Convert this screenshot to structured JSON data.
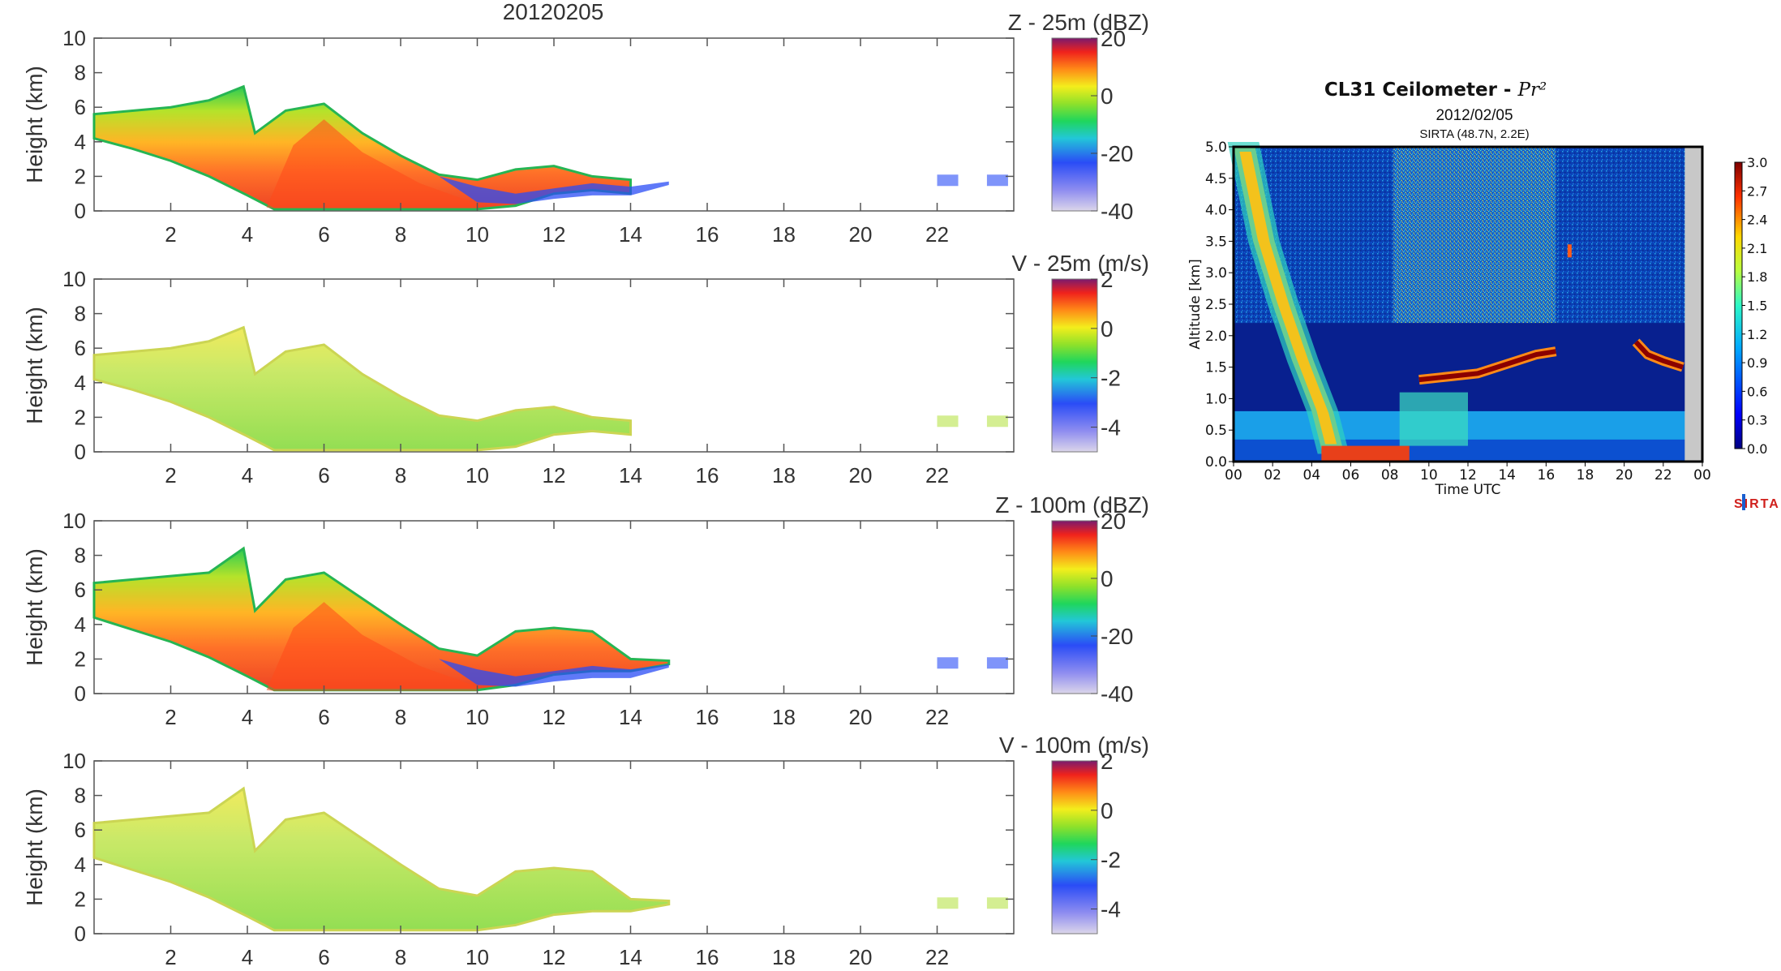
{
  "figure": {
    "date_title": "20120205"
  },
  "chart_data": [
    {
      "type": "heatmap",
      "panel": "Z - 25m (dBZ)",
      "title": "Z - 25m (dBZ)",
      "xlabel": "",
      "ylabel": "Height (km)",
      "xlim": [
        0,
        24
      ],
      "ylim": [
        0,
        10
      ],
      "xticks": [
        2,
        4,
        6,
        8,
        10,
        12,
        14,
        16,
        18,
        20,
        22
      ],
      "yticks": [
        0,
        2,
        4,
        6,
        8,
        10
      ],
      "colorbar": {
        "min": -40,
        "max": 20,
        "ticks": [
          20,
          0,
          -20,
          -40
        ]
      },
      "echo_top_height_km": [
        [
          0,
          5.6
        ],
        [
          1,
          5.8
        ],
        [
          2,
          6.0
        ],
        [
          3,
          6.4
        ],
        [
          3.9,
          7.2
        ],
        [
          4.2,
          4.5
        ],
        [
          5,
          5.8
        ],
        [
          6,
          6.2
        ],
        [
          7,
          4.5
        ],
        [
          8,
          3.2
        ],
        [
          9,
          2.1
        ],
        [
          10,
          1.8
        ],
        [
          11,
          2.4
        ],
        [
          12,
          2.6
        ],
        [
          13,
          2.0
        ],
        [
          14,
          1.8
        ]
      ],
      "echo_base_height_km": [
        [
          0,
          4.2
        ],
        [
          1,
          3.6
        ],
        [
          2,
          2.9
        ],
        [
          3,
          2.0
        ],
        [
          4,
          0.9
        ],
        [
          4.7,
          0.1
        ],
        [
          10,
          0.1
        ],
        [
          11,
          0.3
        ],
        [
          12,
          1.0
        ],
        [
          13,
          1.2
        ],
        [
          14,
          1.0
        ]
      ],
      "colorscale": "jet"
    },
    {
      "type": "heatmap",
      "panel": "V - 25m (m/s)",
      "title": "V - 25m (m/s)",
      "xlabel": "",
      "ylabel": "Height (km)",
      "xlim": [
        0,
        24
      ],
      "ylim": [
        0,
        10
      ],
      "xticks": [
        2,
        4,
        6,
        8,
        10,
        12,
        14,
        16,
        18,
        20,
        22
      ],
      "yticks": [
        0,
        2,
        4,
        6,
        8,
        10
      ],
      "colorbar": {
        "min": -5,
        "max": 2,
        "ticks": [
          2,
          0,
          -2,
          -4
        ]
      },
      "echo_top_height_km": [
        [
          0,
          5.6
        ],
        [
          1,
          5.8
        ],
        [
          2,
          6.0
        ],
        [
          3,
          6.4
        ],
        [
          3.9,
          7.2
        ],
        [
          4.2,
          4.5
        ],
        [
          5,
          5.8
        ],
        [
          6,
          6.2
        ],
        [
          7,
          4.5
        ],
        [
          8,
          3.2
        ],
        [
          9,
          2.1
        ],
        [
          10,
          1.8
        ],
        [
          11,
          2.4
        ],
        [
          12,
          2.6
        ],
        [
          13,
          2.0
        ],
        [
          14,
          1.8
        ]
      ],
      "echo_base_height_km": [
        [
          0,
          4.2
        ],
        [
          1,
          3.6
        ],
        [
          2,
          2.9
        ],
        [
          3,
          2.0
        ],
        [
          4,
          0.9
        ],
        [
          4.7,
          0.1
        ],
        [
          10,
          0.1
        ],
        [
          11,
          0.3
        ],
        [
          12,
          1.0
        ],
        [
          13,
          1.2
        ],
        [
          14,
          1.0
        ]
      ],
      "colorscale": "jet"
    },
    {
      "type": "heatmap",
      "panel": "Z - 100m (dBZ)",
      "title": "Z - 100m (dBZ)",
      "xlabel": "",
      "ylabel": "Height (km)",
      "xlim": [
        0,
        24
      ],
      "ylim": [
        0,
        10
      ],
      "xticks": [
        2,
        4,
        6,
        8,
        10,
        12,
        14,
        16,
        18,
        20,
        22
      ],
      "yticks": [
        0,
        2,
        4,
        6,
        8,
        10
      ],
      "colorbar": {
        "min": -40,
        "max": 20,
        "ticks": [
          20,
          0,
          -20,
          -40
        ]
      },
      "echo_top_height_km": [
        [
          0,
          6.4
        ],
        [
          1,
          6.6
        ],
        [
          2,
          6.8
        ],
        [
          3,
          7.0
        ],
        [
          3.9,
          8.4
        ],
        [
          4.2,
          4.8
        ],
        [
          5,
          6.6
        ],
        [
          6,
          7.0
        ],
        [
          7,
          5.5
        ],
        [
          8,
          4.0
        ],
        [
          9,
          2.6
        ],
        [
          10,
          2.2
        ],
        [
          11,
          3.6
        ],
        [
          12,
          3.8
        ],
        [
          13,
          3.6
        ],
        [
          14,
          2.0
        ],
        [
          15,
          1.9
        ]
      ],
      "echo_base_height_km": [
        [
          0,
          4.4
        ],
        [
          1,
          3.7
        ],
        [
          2,
          3.0
        ],
        [
          3,
          2.1
        ],
        [
          4,
          1.0
        ],
        [
          4.7,
          0.2
        ],
        [
          10,
          0.2
        ],
        [
          11,
          0.5
        ],
        [
          12,
          1.1
        ],
        [
          13,
          1.3
        ],
        [
          14,
          1.3
        ],
        [
          15,
          1.7
        ]
      ],
      "colorscale": "jet"
    },
    {
      "type": "heatmap",
      "panel": "V - 100m (m/s)",
      "title": "V - 100m (m/s)",
      "xlabel": "",
      "ylabel": "Height (km)",
      "xlim": [
        0,
        24
      ],
      "ylim": [
        0,
        10
      ],
      "xticks": [
        2,
        4,
        6,
        8,
        10,
        12,
        14,
        16,
        18,
        20,
        22
      ],
      "yticks": [
        0,
        2,
        4,
        6,
        8,
        10
      ],
      "colorbar": {
        "min": -5,
        "max": 2,
        "ticks": [
          2,
          0,
          -2,
          -4
        ]
      },
      "echo_top_height_km": [
        [
          0,
          6.4
        ],
        [
          1,
          6.6
        ],
        [
          2,
          6.8
        ],
        [
          3,
          7.0
        ],
        [
          3.9,
          8.4
        ],
        [
          4.2,
          4.8
        ],
        [
          5,
          6.6
        ],
        [
          6,
          7.0
        ],
        [
          7,
          5.5
        ],
        [
          8,
          4.0
        ],
        [
          9,
          2.6
        ],
        [
          10,
          2.2
        ],
        [
          11,
          3.6
        ],
        [
          12,
          3.8
        ],
        [
          13,
          3.6
        ],
        [
          14,
          2.0
        ],
        [
          15,
          1.9
        ]
      ],
      "echo_base_height_km": [
        [
          0,
          4.4
        ],
        [
          1,
          3.7
        ],
        [
          2,
          3.0
        ],
        [
          3,
          2.1
        ],
        [
          4,
          1.0
        ],
        [
          4.7,
          0.2
        ],
        [
          10,
          0.2
        ],
        [
          11,
          0.5
        ],
        [
          12,
          1.1
        ],
        [
          13,
          1.3
        ],
        [
          14,
          1.3
        ],
        [
          15,
          1.7
        ]
      ],
      "colorscale": "jet"
    },
    {
      "type": "heatmap",
      "panel": "CL31 Ceilometer",
      "title": "CL31 Ceilometer - ",
      "title_math": "Pr²",
      "subtitle": "2012/02/05",
      "location": "SIRTA (48.7N, 2.2E)",
      "xlabel": "Time UTC",
      "ylabel": "Altitude [km]",
      "xlim": [
        0,
        24
      ],
      "ylim": [
        0,
        5
      ],
      "xtick_labels": [
        "00",
        "02",
        "04",
        "06",
        "08",
        "10",
        "12",
        "14",
        "16",
        "18",
        "20",
        "22",
        "00"
      ],
      "yticks": [
        "0.0",
        "0.5",
        "1.0",
        "1.5",
        "2.0",
        "2.5",
        "3.0",
        "3.5",
        "4.0",
        "4.5",
        "5.0"
      ],
      "colorbar": {
        "min": 0.0,
        "max": 3.0,
        "ticks": [
          "3.0",
          "2.7",
          "2.4",
          "2.1",
          "1.8",
          "1.5",
          "1.2",
          "0.9",
          "0.6",
          "0.3",
          "0.0"
        ]
      },
      "precip_band_km": [
        [
          0,
          5.0
        ],
        [
          1,
          3.5
        ],
        [
          2,
          2.5
        ],
        [
          3,
          1.6
        ],
        [
          4,
          0.8
        ],
        [
          4.5,
          0.2
        ]
      ],
      "cloud_layer_km": [
        [
          9.5,
          1.3
        ],
        [
          11,
          1.35
        ],
        [
          12.5,
          1.4
        ],
        [
          14,
          1.55
        ],
        [
          15.5,
          1.7
        ],
        [
          16.5,
          1.75
        ]
      ],
      "cloud_layer2_km": [
        [
          20.6,
          1.9
        ],
        [
          21.2,
          1.7
        ],
        [
          22,
          1.6
        ],
        [
          23,
          1.5
        ]
      ],
      "colorscale": "jet",
      "logo_text": "SIRTA"
    }
  ]
}
